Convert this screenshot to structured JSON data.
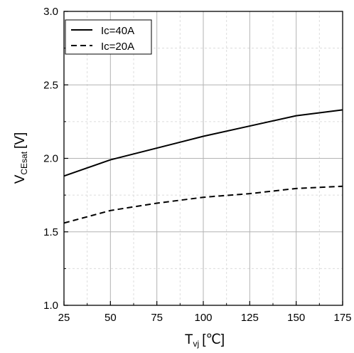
{
  "chart_data": {
    "type": "line",
    "x": [
      25,
      50,
      75,
      100,
      125,
      150,
      175
    ],
    "series": [
      {
        "name": "Ic=40A",
        "style": "solid",
        "values": [
          1.88,
          1.99,
          2.07,
          2.15,
          2.22,
          2.29,
          2.33
        ]
      },
      {
        "name": "Ic=20A",
        "style": "dashed",
        "values": [
          1.56,
          1.645,
          1.695,
          1.735,
          1.76,
          1.795,
          1.81
        ]
      }
    ],
    "title": "",
    "xlabel": {
      "main": "T",
      "sub": "vj",
      "unit": "[℃]"
    },
    "ylabel": {
      "main": "V",
      "sub": "CEsat",
      "unit": "[V]"
    },
    "xlim": [
      25,
      175
    ],
    "ylim": [
      1.0,
      3.0
    ],
    "xticks": [
      25,
      50,
      75,
      100,
      125,
      150,
      175
    ],
    "yticks": [
      1.0,
      1.5,
      2.0,
      2.5,
      3.0
    ],
    "ytick_labels": [
      "1.0",
      "1.5",
      "2.0",
      "2.5",
      "3.0"
    ],
    "grid": true,
    "legend": "top-left",
    "colors": {
      "line": "#000000",
      "grid_major": "#b3b3b3",
      "grid_minor": "#dcdcdc",
      "frame": "#000000"
    }
  }
}
